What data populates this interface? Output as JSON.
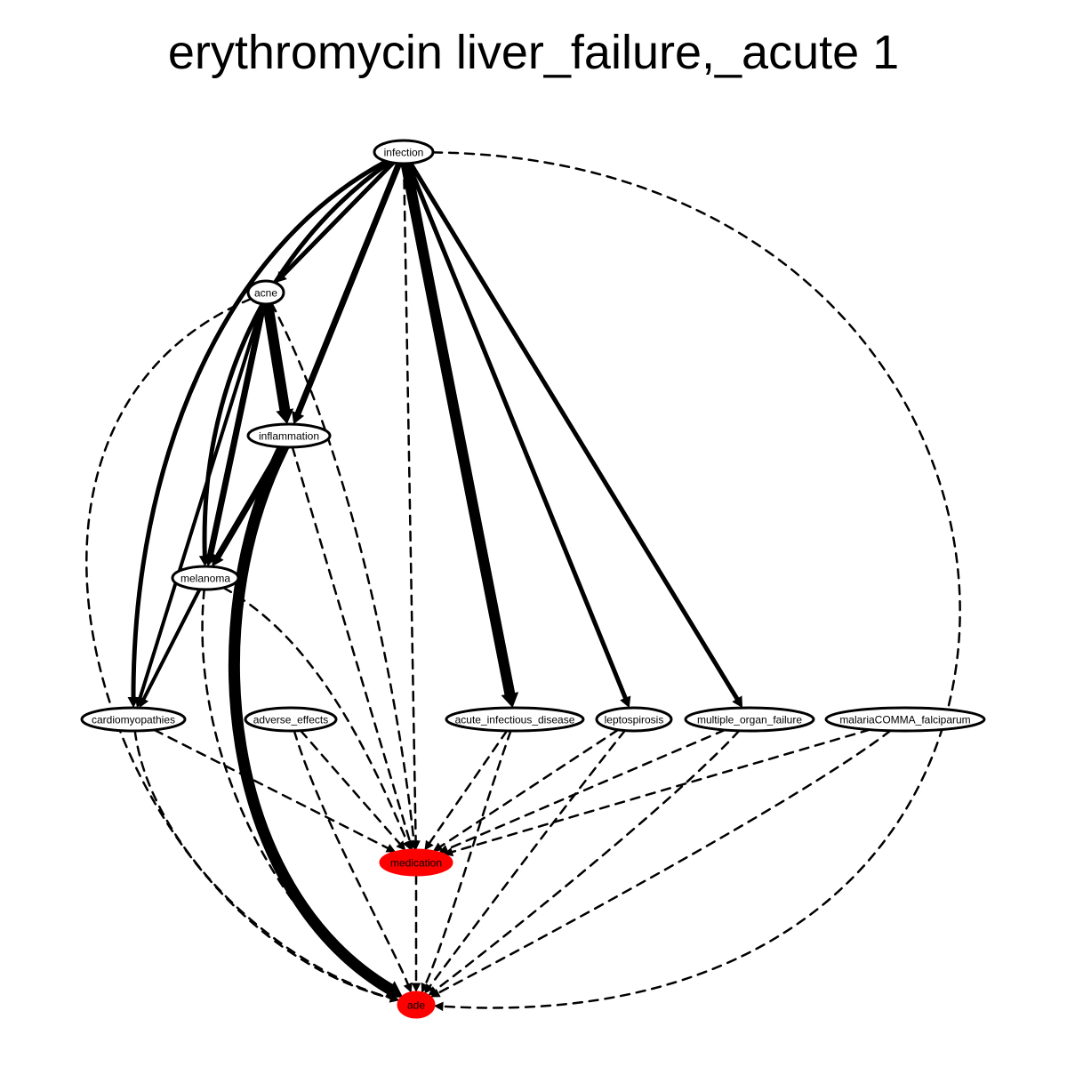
{
  "title": "erythromycin liver_failure,_acute 1",
  "colors": {
    "highlight": "#ff0000",
    "node_fill": "#ffffff",
    "stroke": "#000000"
  },
  "nodes": {
    "infection": {
      "label": "infection",
      "highlight": false
    },
    "acne": {
      "label": "acne",
      "highlight": false
    },
    "inflammation": {
      "label": "inflammation",
      "highlight": false
    },
    "melanoma": {
      "label": "melanoma",
      "highlight": false
    },
    "cardiomyopathies": {
      "label": "cardiomyopathies",
      "highlight": false
    },
    "adverse_effects": {
      "label": "adverse_effects",
      "highlight": false
    },
    "acute_infectious_disease": {
      "label": "acute_infectious_disease",
      "highlight": false
    },
    "leptospirosis": {
      "label": "leptospirosis",
      "highlight": false
    },
    "multiple_organ_failure": {
      "label": "multiple_organ_failure",
      "highlight": false
    },
    "malaria": {
      "label": "malariaCOMMA_falciparum",
      "highlight": false
    },
    "medication": {
      "label": "medication",
      "highlight": true
    },
    "ade": {
      "label": "ade",
      "highlight": true
    }
  },
  "edges": [
    {
      "from": "infection",
      "to": "acne",
      "style": "solid",
      "weight": 5
    },
    {
      "from": "infection",
      "to": "inflammation",
      "style": "solid",
      "weight": 7
    },
    {
      "from": "infection",
      "to": "melanoma",
      "style": "solid",
      "weight": 5
    },
    {
      "from": "infection",
      "to": "cardiomyopathies",
      "style": "solid",
      "weight": 5
    },
    {
      "from": "infection",
      "to": "acute_infectious_disease",
      "style": "solid",
      "weight": 12
    },
    {
      "from": "infection",
      "to": "leptospirosis",
      "style": "solid",
      "weight": 5
    },
    {
      "from": "infection",
      "to": "multiple_organ_failure",
      "style": "solid",
      "weight": 5
    },
    {
      "from": "infection",
      "to": "medication",
      "style": "dashed",
      "weight": 2.5
    },
    {
      "from": "infection",
      "to": "ade",
      "style": "dashed",
      "weight": 2.5
    },
    {
      "from": "acne",
      "to": "inflammation",
      "style": "solid",
      "weight": 12
    },
    {
      "from": "acne",
      "to": "melanoma",
      "style": "solid",
      "weight": 7
    },
    {
      "from": "acne",
      "to": "cardiomyopathies",
      "style": "solid",
      "weight": 4
    },
    {
      "from": "acne",
      "to": "medication",
      "style": "dashed",
      "weight": 2.5
    },
    {
      "from": "acne",
      "to": "ade",
      "style": "dashed",
      "weight": 2.5
    },
    {
      "from": "inflammation",
      "to": "melanoma",
      "style": "solid",
      "weight": 7
    },
    {
      "from": "inflammation",
      "to": "ade",
      "style": "solid",
      "weight": 13
    },
    {
      "from": "inflammation",
      "to": "medication",
      "style": "dashed",
      "weight": 2.5
    },
    {
      "from": "melanoma",
      "to": "cardiomyopathies",
      "style": "solid",
      "weight": 4
    },
    {
      "from": "melanoma",
      "to": "medication",
      "style": "dashed",
      "weight": 2.5
    },
    {
      "from": "melanoma",
      "to": "ade",
      "style": "dashed",
      "weight": 2.5
    },
    {
      "from": "cardiomyopathies",
      "to": "medication",
      "style": "dashed",
      "weight": 2.5
    },
    {
      "from": "cardiomyopathies",
      "to": "ade",
      "style": "dashed",
      "weight": 2.5
    },
    {
      "from": "adverse_effects",
      "to": "medication",
      "style": "dashed",
      "weight": 2.5
    },
    {
      "from": "adverse_effects",
      "to": "ade",
      "style": "dashed",
      "weight": 2.5
    },
    {
      "from": "acute_infectious_disease",
      "to": "medication",
      "style": "dashed",
      "weight": 2.5
    },
    {
      "from": "acute_infectious_disease",
      "to": "ade",
      "style": "dashed",
      "weight": 2.5
    },
    {
      "from": "leptospirosis",
      "to": "medication",
      "style": "dashed",
      "weight": 2.5
    },
    {
      "from": "leptospirosis",
      "to": "ade",
      "style": "dashed",
      "weight": 2.5
    },
    {
      "from": "multiple_organ_failure",
      "to": "medication",
      "style": "dashed",
      "weight": 2.5
    },
    {
      "from": "multiple_organ_failure",
      "to": "ade",
      "style": "dashed",
      "weight": 2.5
    },
    {
      "from": "malaria",
      "to": "medication",
      "style": "dashed",
      "weight": 2.5
    },
    {
      "from": "malaria",
      "to": "ade",
      "style": "dashed",
      "weight": 2.5
    },
    {
      "from": "medication",
      "to": "ade",
      "style": "dashed",
      "weight": 2.5
    }
  ]
}
